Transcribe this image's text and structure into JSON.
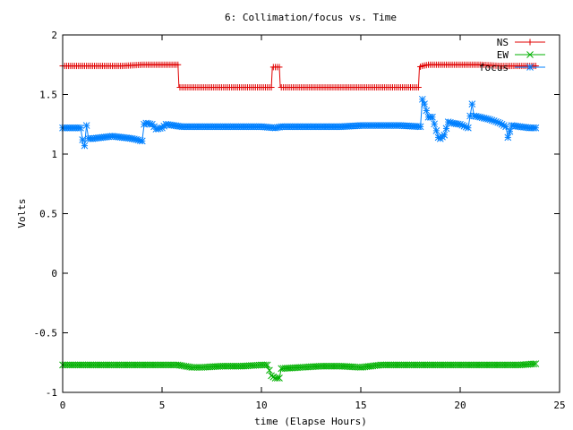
{
  "chart_data": {
    "type": "line",
    "title": "6: Collimation/focus vs. Time",
    "xlabel": "time (Elapse Hours)",
    "ylabel": "Volts",
    "xlim": [
      0,
      25
    ],
    "ylim": [
      -1,
      2
    ],
    "x_ticks": [
      0,
      5,
      10,
      15,
      20,
      25
    ],
    "y_ticks": [
      -1,
      -0.5,
      0,
      0.5,
      1,
      1.5,
      2
    ],
    "x_tick_labels": [
      "0",
      "5",
      "10",
      "15",
      "20",
      "25"
    ],
    "y_tick_labels": [
      "-1",
      "-0.5",
      "0",
      "0.5",
      "1",
      "1.5",
      "2"
    ],
    "legend_position": "top-right",
    "series": [
      {
        "name": "NS",
        "color": "#e00000",
        "marker": "plus",
        "x": [
          0,
          1,
          2,
          3,
          4,
          5,
          5.8,
          5.85,
          6,
          7,
          8,
          9,
          10,
          10.5,
          10.55,
          10.7,
          10.9,
          10.95,
          12,
          13,
          14,
          15,
          16,
          17,
          17.9,
          17.95,
          18.1,
          18.4,
          19,
          20,
          21,
          22,
          23,
          23.8
        ],
        "values": [
          1.74,
          1.74,
          1.74,
          1.74,
          1.75,
          1.75,
          1.75,
          1.56,
          1.56,
          1.56,
          1.56,
          1.56,
          1.56,
          1.56,
          1.73,
          1.73,
          1.73,
          1.56,
          1.56,
          1.56,
          1.56,
          1.56,
          1.56,
          1.56,
          1.56,
          1.73,
          1.74,
          1.75,
          1.75,
          1.75,
          1.75,
          1.74,
          1.74,
          1.74
        ]
      },
      {
        "name": "EW",
        "color": "#00b000",
        "marker": "cross",
        "x": [
          0,
          1,
          2,
          3,
          4,
          5,
          5.8,
          6.5,
          7,
          8,
          9,
          10,
          10.3,
          10.5,
          10.7,
          10.9,
          11,
          12,
          13,
          14,
          15,
          16,
          17,
          18,
          19,
          20,
          21,
          22,
          23,
          23.8
        ],
        "values": [
          -0.77,
          -0.77,
          -0.77,
          -0.77,
          -0.77,
          -0.77,
          -0.77,
          -0.79,
          -0.79,
          -0.78,
          -0.78,
          -0.77,
          -0.77,
          -0.86,
          -0.88,
          -0.88,
          -0.8,
          -0.79,
          -0.78,
          -0.78,
          -0.79,
          -0.77,
          -0.77,
          -0.77,
          -0.77,
          -0.77,
          -0.77,
          -0.77,
          -0.77,
          -0.76
        ]
      },
      {
        "name": "focus",
        "color": "#0080ff",
        "marker": "star",
        "x": [
          0,
          0.9,
          1.05,
          1.1,
          1.2,
          1.3,
          1.5,
          2,
          2.5,
          3,
          3.5,
          4,
          4.1,
          4.2,
          4.5,
          4.7,
          5,
          5.2,
          6,
          7,
          8,
          9,
          10,
          10.7,
          11,
          12,
          13,
          14,
          15,
          16,
          17,
          18,
          18.1,
          18.2,
          18.4,
          18.6,
          18.9,
          19,
          19.2,
          19.4,
          19.6,
          20,
          20.4,
          20.6,
          20.7,
          21,
          21.5,
          22,
          22.3,
          22.4,
          22.6,
          23,
          23.5,
          23.8
        ],
        "values": [
          1.22,
          1.22,
          1.07,
          1.07,
          1.24,
          1.13,
          1.13,
          1.14,
          1.15,
          1.14,
          1.13,
          1.11,
          1.25,
          1.26,
          1.25,
          1.21,
          1.22,
          1.25,
          1.23,
          1.23,
          1.23,
          1.23,
          1.23,
          1.22,
          1.23,
          1.23,
          1.23,
          1.23,
          1.24,
          1.24,
          1.24,
          1.23,
          1.46,
          1.42,
          1.31,
          1.31,
          1.14,
          1.13,
          1.16,
          1.27,
          1.26,
          1.25,
          1.22,
          1.42,
          1.32,
          1.31,
          1.29,
          1.26,
          1.23,
          1.14,
          1.24,
          1.23,
          1.22,
          1.22
        ]
      }
    ]
  }
}
